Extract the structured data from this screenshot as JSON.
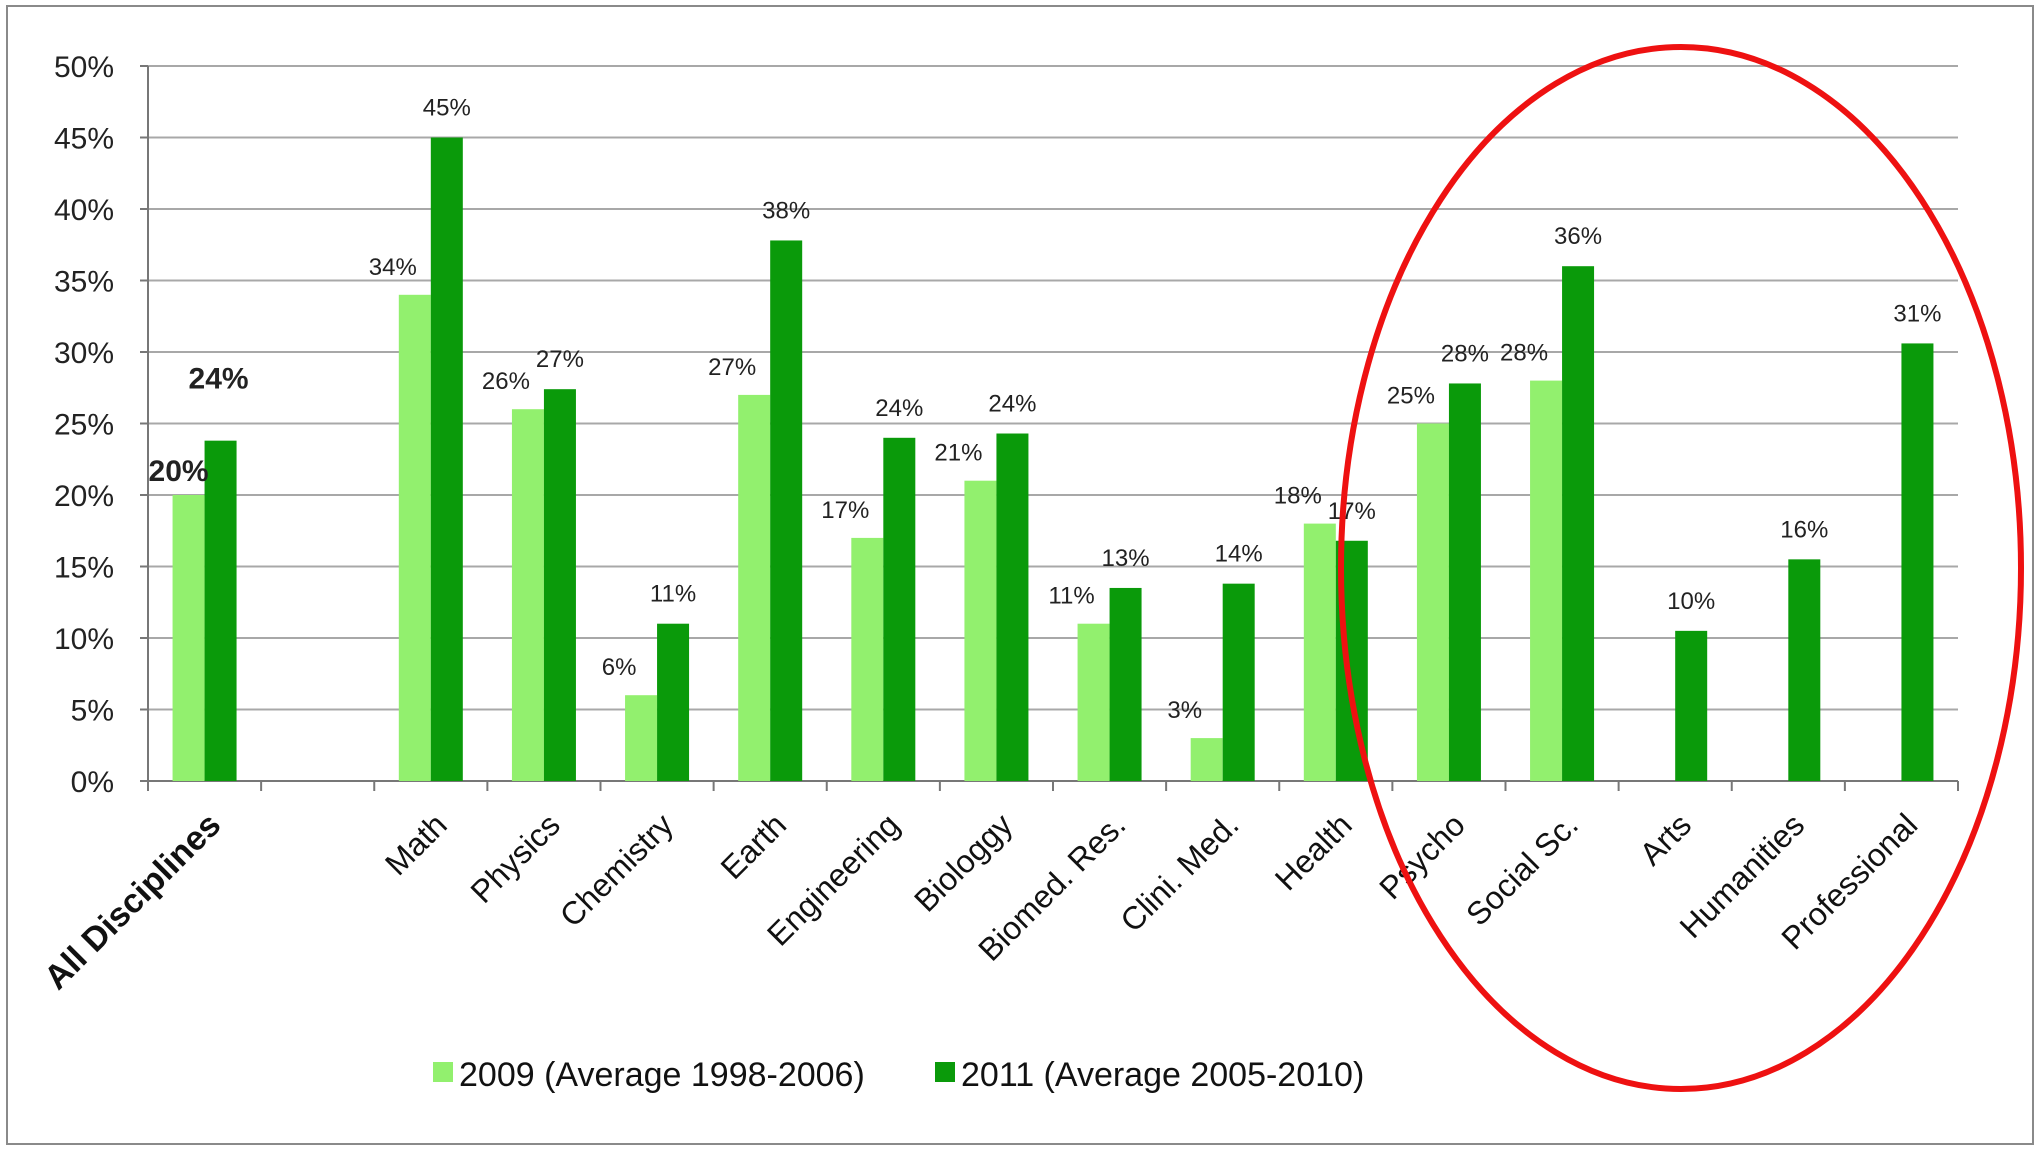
{
  "chart_data": {
    "type": "bar",
    "categories": [
      "All Disciplines",
      "",
      "Math",
      "Physics",
      "Chemistry",
      "Earth",
      "Engineering",
      "Biologgy",
      "Biomed. Res.",
      "Clini. Med.",
      "Health",
      "Psycho",
      "Social Sc.",
      "Arts",
      "Humanities",
      "Professional"
    ],
    "series": [
      {
        "name": "2009 (Average 1998-2006)",
        "color": "#92f06e",
        "values": [
          20,
          null,
          34,
          26,
          6,
          27,
          17,
          21,
          11,
          3,
          18,
          25,
          28,
          null,
          null,
          null
        ],
        "labels": [
          "20%",
          "",
          "34%",
          "26%",
          "6%",
          "27%",
          "17%",
          "21%",
          "11%",
          "3%",
          "18%",
          "25%",
          "28%",
          "",
          "",
          ""
        ]
      },
      {
        "name": "2011 (Average 2005-2010)",
        "color": "#0a9a0a",
        "values": [
          23.8,
          null,
          45,
          27.4,
          11,
          37.8,
          24,
          24.3,
          13.5,
          13.8,
          16.8,
          27.8,
          36,
          10.5,
          15.5,
          30.6
        ],
        "labels": [
          "24%",
          "",
          "45%",
          "27%",
          "11%",
          "38%",
          "24%",
          "24%",
          "13%",
          "14%",
          "17%",
          "28%",
          "36%",
          "10%",
          "16%",
          "31%"
        ]
      }
    ],
    "yticks": [
      "0%",
      "5%",
      "10%",
      "15%",
      "20%",
      "25%",
      "30%",
      "35%",
      "40%",
      "45%",
      "50%"
    ],
    "ylim": [
      0,
      50
    ],
    "grid": true,
    "legend": "bottom",
    "annotation": {
      "shape": "ellipse",
      "color": "#ee1111",
      "covers": [
        "Psycho",
        "Social Sc.",
        "Arts",
        "Humanities",
        "Professional"
      ]
    }
  }
}
